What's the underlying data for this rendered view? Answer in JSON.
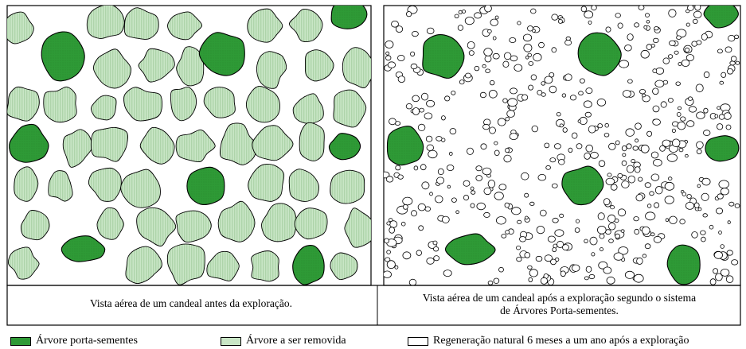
{
  "captions": {
    "before": "Vista aérea de um candeal antes da exploração.",
    "after_line1": "Vista aérea de um candeal após a exploração segundo o sistema",
    "after_line2": "de Árvores Porta-sementes."
  },
  "legend": [
    {
      "label": "Árvore porta-sementes",
      "color": "#2e9a36"
    },
    {
      "label": "Árvore a ser removida",
      "color": "#c9e6c6"
    },
    {
      "label": "Regeneração natural 6 meses a um ano após a exploração",
      "color": "#ffffff"
    }
  ],
  "colors": {
    "seed_tree": "#2e9a36",
    "removed_tree": "#c9e6c6",
    "removed_hatch": "#9fca9b",
    "regeneration": "#ffffff",
    "outline": "#000000"
  }
}
